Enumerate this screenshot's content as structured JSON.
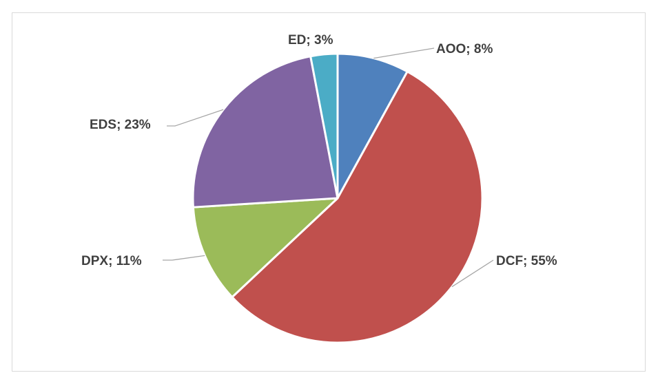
{
  "chart_data": {
    "type": "pie",
    "title": "",
    "start_angle_deg": 0,
    "direction": "clockwise",
    "slices": [
      {
        "label": "AOO",
        "value": 8,
        "display": "AOO; 8%",
        "color": "#4f81bd"
      },
      {
        "label": "DCF",
        "value": 55,
        "display": "DCF; 55%",
        "color": "#c0504d"
      },
      {
        "label": "DPX",
        "value": 11,
        "display": "DPX; 11%",
        "color": "#9bbb59"
      },
      {
        "label": "EDS",
        "value": 23,
        "display": "EDS; 23%",
        "color": "#8064a2"
      },
      {
        "label": "ED",
        "value": 3,
        "display": "ED; 3%",
        "color": "#4bacc6"
      }
    ],
    "leader_line_color": "#a6a6a6",
    "label_color": "#404040"
  }
}
